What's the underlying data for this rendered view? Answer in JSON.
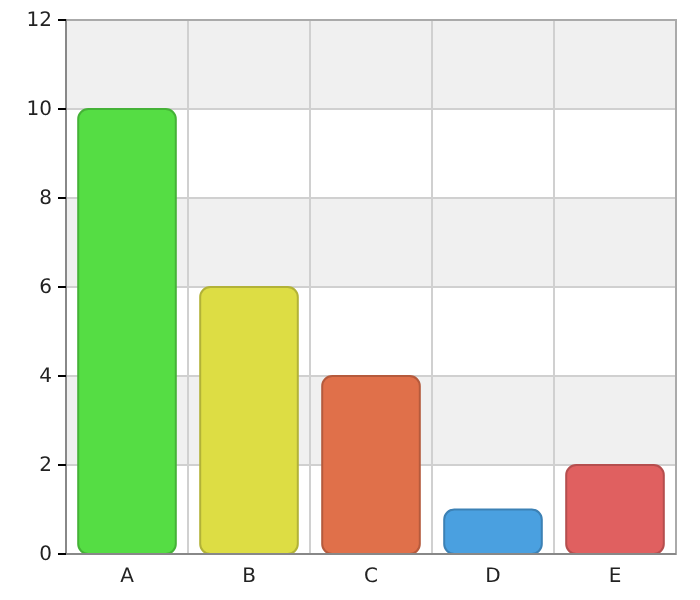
{
  "chart_data": {
    "type": "bar",
    "categories": [
      "A",
      "B",
      "C",
      "D",
      "E"
    ],
    "values": [
      10,
      6,
      4,
      1,
      2
    ],
    "colors": [
      "#55dd44",
      "#dddd44",
      "#e0704a",
      "#4aa0e0",
      "#e06060"
    ],
    "ylim": [
      0,
      12
    ],
    "yticks": [
      0,
      2,
      4,
      6,
      8,
      10,
      12
    ],
    "grid": true
  }
}
